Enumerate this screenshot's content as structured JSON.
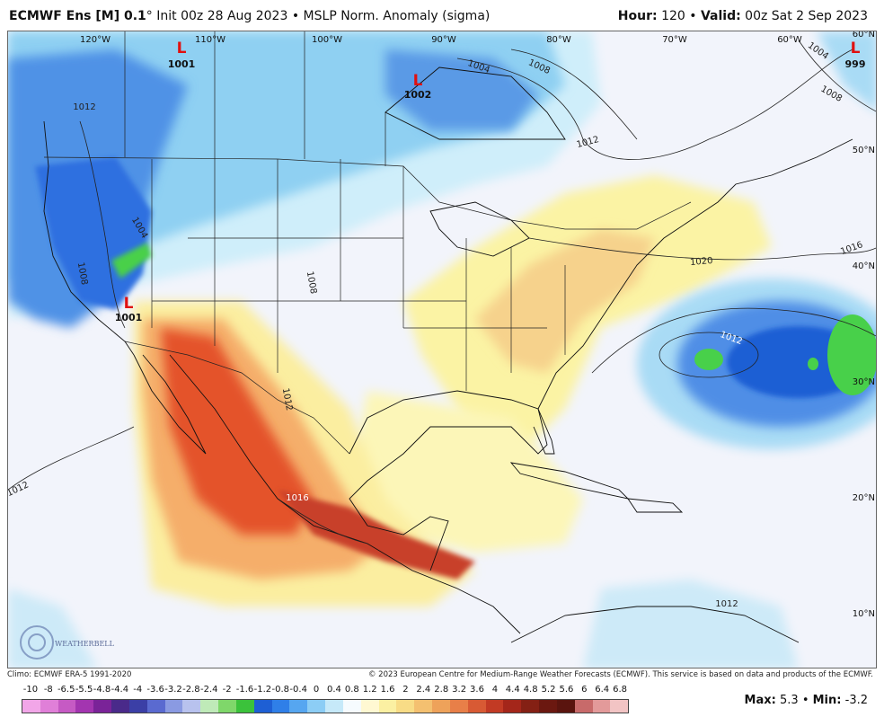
{
  "header": {
    "model": "ECMWF Ens [M] 0.1",
    "degree": "°",
    "init": "Init 00z 28 Aug 2023",
    "sep": "•",
    "field": "MSLP Norm. Anomaly (sigma)",
    "hour_label": "Hour:",
    "hour_value": "120",
    "valid_label": "Valid:",
    "valid_value": "00z Sat 2 Sep 2023"
  },
  "map": {
    "lon_labels": [
      "120°W",
      "110°W",
      "100°W",
      "90°W",
      "80°W",
      "70°W",
      "60°W"
    ],
    "lat_labels": [
      "60°N",
      "50°N",
      "40°N",
      "30°N",
      "20°N",
      "10°N"
    ],
    "lows": [
      {
        "symbol": "L",
        "value": "1001"
      },
      {
        "symbol": "L",
        "value": "1002"
      },
      {
        "symbol": "L",
        "value": "1001"
      },
      {
        "symbol": "L",
        "value": "999"
      }
    ],
    "isobar_labels": [
      "1004",
      "1008",
      "1012",
      "1016",
      "1020",
      "1004",
      "1008",
      "1012",
      "1012",
      "1016",
      "1012",
      "1008",
      "1004",
      "1012",
      "1008",
      "1012"
    ],
    "logo_text": "WEATHERBELL",
    "colors": {
      "negative_strong": "#2f6fe0",
      "negative_weak": "#bfe6f7",
      "positive_weak": "#fbf3a4",
      "positive_strong": "#e4532a",
      "extreme_negative": "#48d04a"
    }
  },
  "footer": {
    "climo": "Climo: ECMWF ERA-5 1991-2020",
    "copyright": "© 2023 European Centre for Medium-Range Weather Forecasts (ECMWF). This service is based on data and products of the ECMWF."
  },
  "colorbar": {
    "labels": [
      "-10",
      "-8",
      "-6.5",
      "-5.5",
      "-4.8",
      "-4.4",
      "-4",
      "-3.6",
      "-3.2",
      "-2.8",
      "-2.4",
      "-2",
      "-1.6",
      "-1.2",
      "-0.8",
      "-0.4",
      "0",
      "0.4",
      "0.8",
      "1.2",
      "1.6",
      "2",
      "2.4",
      "2.8",
      "3.2",
      "3.6",
      "4",
      "4.4",
      "4.8",
      "5.2",
      "5.6",
      "6",
      "6.4",
      "6.8"
    ],
    "colors": [
      "#f2a6e8",
      "#e07fd8",
      "#c65ac4",
      "#a335b0",
      "#7a2398",
      "#4a2a8a",
      "#3b3fa6",
      "#5a6ad0",
      "#8a9ae2",
      "#b8c2ee",
      "#bfeab8",
      "#7fd76a",
      "#3bc23b",
      "#1e5fd4",
      "#2f7fe8",
      "#56a6f0",
      "#8ccdf5",
      "#c6e9f9",
      "#f6fbfe",
      "#fff8d2",
      "#fbf0a2",
      "#f8dc86",
      "#f4c070",
      "#eea25a",
      "#e87f48",
      "#d85a34",
      "#c23a24",
      "#a4261a",
      "#842014",
      "#6b1810",
      "#5a140e",
      "#c86a6a",
      "#e39a9a",
      "#f2c4c4"
    ]
  },
  "stats": {
    "max_label": "Max:",
    "max_value": "5.3",
    "min_label": "Min:",
    "min_value": "-3.2"
  }
}
